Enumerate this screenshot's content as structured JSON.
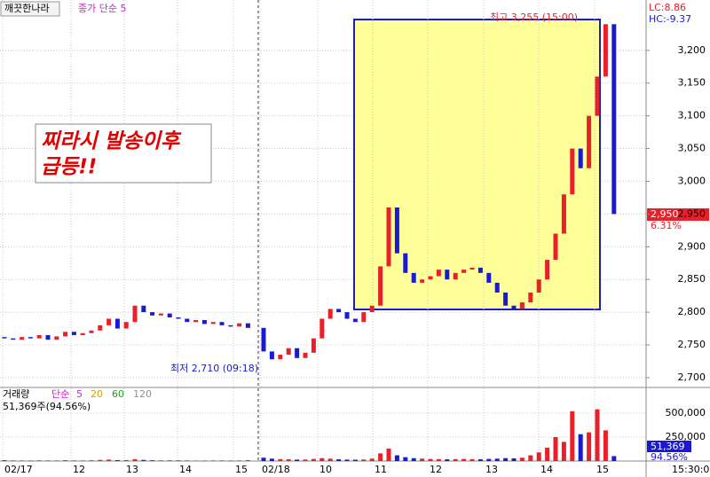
{
  "chart_data": [
    {
      "type": "candlestick",
      "title": "깨끗한나라",
      "indicator": "종가 단순 5",
      "lc": "LC:8.86",
      "hc": "HC:-9.37",
      "annotation": [
        "찌라시 발송이후",
        "급등!!"
      ],
      "high_label": "최고 3,255 (15:00)",
      "low_label": "최저 2,710 (09:18)",
      "last_price": "2,950",
      "change": "6.31%",
      "up_color": "#e8202a",
      "down_color": "#1a1ad0",
      "time_labels": [
        "02/17",
        "12",
        "13",
        "14",
        "15",
        "02/18",
        "10",
        "11",
        "12",
        "13",
        "14",
        "15"
      ],
      "end_time": "15:30:00",
      "open": [
        2762,
        2760,
        2758,
        2762,
        2760,
        2765,
        2758,
        2763,
        2770,
        2765,
        2768,
        2772,
        2780,
        2790,
        2775,
        2785,
        2810,
        2800,
        2795,
        2798,
        2792,
        2790,
        2785,
        2788,
        2782,
        2785,
        2780,
        2778,
        2783,
        2776,
        2740,
        2728,
        2735,
        2745,
        2730,
        2738,
        2760,
        2790,
        2805,
        2800,
        2790,
        2785,
        2800,
        2810,
        2870,
        2960,
        2890,
        2860,
        2845,
        2850,
        2855,
        2865,
        2850,
        2860,
        2865,
        2868,
        2860,
        2845,
        2830,
        2810,
        2805,
        2815,
        2830,
        2850,
        2880,
        2920,
        2980,
        3050,
        3020,
        3100,
        3160,
        3240
      ],
      "close": [
        2760,
        2758,
        2762,
        2760,
        2765,
        2758,
        2763,
        2770,
        2765,
        2768,
        2772,
        2780,
        2790,
        2775,
        2785,
        2810,
        2800,
        2795,
        2798,
        2792,
        2790,
        2785,
        2788,
        2782,
        2785,
        2780,
        2778,
        2783,
        2776,
        2740,
        2728,
        2735,
        2745,
        2730,
        2738,
        2760,
        2790,
        2805,
        2800,
        2790,
        2785,
        2800,
        2810,
        2870,
        2960,
        2890,
        2860,
        2845,
        2850,
        2855,
        2865,
        2850,
        2860,
        2865,
        2868,
        2860,
        2845,
        2830,
        2810,
        2805,
        2815,
        2830,
        2850,
        2880,
        2920,
        2980,
        3050,
        3020,
        3100,
        3160,
        3240,
        2950
      ],
      "ylim": [
        2685,
        3277
      ],
      "yticks": [
        {
          "value": 2700,
          "label": "2,700"
        },
        {
          "value": 2750,
          "label": "2,750"
        },
        {
          "value": 2800,
          "label": "2,800"
        },
        {
          "value": 2850,
          "label": "2,850"
        },
        {
          "value": 2900,
          "label": "2,900"
        },
        {
          "value": 2950,
          "label": "2,950"
        },
        {
          "value": 3000,
          "label": "3,000"
        },
        {
          "value": 3050,
          "label": "3,050"
        },
        {
          "value": 3100,
          "label": "3,100"
        },
        {
          "value": 3150,
          "label": "3,150"
        },
        {
          "value": 3200,
          "label": "3,200"
        }
      ],
      "grid": true
    },
    {
      "type": "bar",
      "title": "거래량",
      "indicator": "단순",
      "ma": [
        {
          "name": "5",
          "color": "#d020d0"
        },
        {
          "name": "20",
          "color": "#e0a000"
        },
        {
          "name": "60",
          "color": "#20a020"
        },
        {
          "name": "120",
          "color": "#909090"
        }
      ],
      "summary": "51,369주(94.56%)",
      "last_label": "51,369",
      "last_pct": "94.56%",
      "up_color": "#e8202a",
      "down_color": "#1a1ad0",
      "values": [
        8000,
        5000,
        6000,
        4000,
        7000,
        5000,
        6000,
        9000,
        5000,
        6000,
        8000,
        12000,
        15000,
        9000,
        10000,
        20000,
        12000,
        8000,
        7000,
        6000,
        6000,
        5000,
        5000,
        4000,
        6000,
        5000,
        4000,
        6000,
        7000,
        35000,
        25000,
        20000,
        18000,
        15000,
        16000,
        22000,
        30000,
        25000,
        18000,
        15000,
        14000,
        16000,
        25000,
        80000,
        130000,
        60000,
        40000,
        30000,
        25000,
        22000,
        20000,
        18000,
        20000,
        22000,
        20000,
        18000,
        22000,
        25000,
        30000,
        28000,
        35000,
        60000,
        90000,
        140000,
        250000,
        200000,
        520000,
        280000,
        300000,
        540000,
        320000,
        51369
      ],
      "ylim": [
        0,
        768000
      ],
      "yticks": [
        {
          "value": 250000,
          "label": "250,000"
        },
        {
          "value": 500000,
          "label": "500,000"
        }
      ]
    }
  ]
}
